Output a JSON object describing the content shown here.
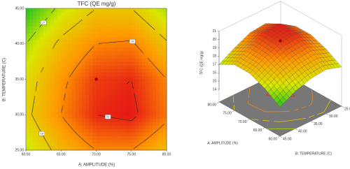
{
  "chart_data": [
    {
      "type": "contour",
      "title": "TFC (QE mg/g)",
      "x_label": "A: AMPLITUDE (%)",
      "y_label": "B: TEMPERATURE (C)",
      "x": [
        60,
        65,
        70,
        75,
        80
      ],
      "y": [
        25,
        30,
        35,
        40,
        45
      ],
      "z": [
        [
          17.2,
          18.3,
          19.0,
          19.0,
          18.2
        ],
        [
          17.8,
          19.0,
          20.0,
          20.2,
          19.2
        ],
        [
          17.6,
          18.8,
          19.8,
          20.0,
          19.0
        ],
        [
          17.0,
          18.2,
          19.0,
          19.1,
          18.1
        ],
        [
          16.0,
          17.2,
          18.0,
          18.0,
          17.0
        ]
      ],
      "levels": [
        17,
        18,
        19,
        20
      ],
      "xlim": [
        60,
        80
      ],
      "xticks": [
        {
          "value": 60,
          "label": "60.00"
        },
        {
          "value": 65,
          "label": "65.00"
        },
        {
          "value": 70,
          "label": "70.00"
        },
        {
          "value": 75,
          "label": "75.00"
        },
        {
          "value": 80,
          "label": "80.00"
        }
      ],
      "ylim": [
        25,
        45
      ],
      "yticks": [
        {
          "value": 25,
          "label": "25.00"
        },
        {
          "value": 30,
          "label": "30.00"
        },
        {
          "value": 35,
          "label": "35.00"
        },
        {
          "value": 40,
          "label": "40.00"
        },
        {
          "value": 45,
          "label": "45.00"
        }
      ],
      "colors": [
        "#1fc21f",
        "#d9e800",
        "#ff9a00",
        "#e51616"
      ],
      "points": {
        "x": [
          70
        ],
        "y": [
          35
        ],
        "color": "#a00000"
      }
    },
    {
      "type": "surface",
      "z_label": "TFC (QE mg/g)",
      "x_label": "A: AMPLITUDE (%)",
      "y_label": "B: TEMPERATURE (C)",
      "x": [
        60,
        65,
        70,
        75,
        80
      ],
      "y": [
        25,
        30,
        35,
        40,
        45
      ],
      "z": [
        [
          17.2,
          18.3,
          19.0,
          19.0,
          18.2
        ],
        [
          17.8,
          19.0,
          20.0,
          20.2,
          19.2
        ],
        [
          17.6,
          18.8,
          19.8,
          20.0,
          19.0
        ],
        [
          17.0,
          18.2,
          19.0,
          19.1,
          18.1
        ],
        [
          16.0,
          17.2,
          18.0,
          18.0,
          17.0
        ]
      ],
      "levels": [
        17,
        18,
        19,
        20
      ],
      "xlim": [
        60,
        80
      ],
      "xticks": [
        {
          "value": 60,
          "label": "60.00"
        },
        {
          "value": 65,
          "label": "65.00"
        },
        {
          "value": 70,
          "label": "70.00"
        },
        {
          "value": 75,
          "label": "75.00"
        },
        {
          "value": 80,
          "label": "80.00"
        }
      ],
      "ylim": [
        25,
        45
      ],
      "yticks": [
        {
          "value": 25,
          "label": "25.00"
        },
        {
          "value": 30,
          "label": "30.00"
        },
        {
          "value": 35,
          "label": "35.00"
        },
        {
          "value": 40,
          "label": "40.00"
        },
        {
          "value": 45,
          "label": "45.00"
        }
      ],
      "zlim": [
        14,
        21
      ],
      "zticks": [
        14,
        15,
        16,
        17,
        18,
        19,
        20,
        21
      ],
      "colors": [
        "#1fc21f",
        "#d9e800",
        "#ff9a00",
        "#e51616"
      ],
      "points": {
        "x": [
          70
        ],
        "y": [
          35
        ],
        "z": [
          20.1
        ],
        "color": "#a00000"
      }
    }
  ]
}
